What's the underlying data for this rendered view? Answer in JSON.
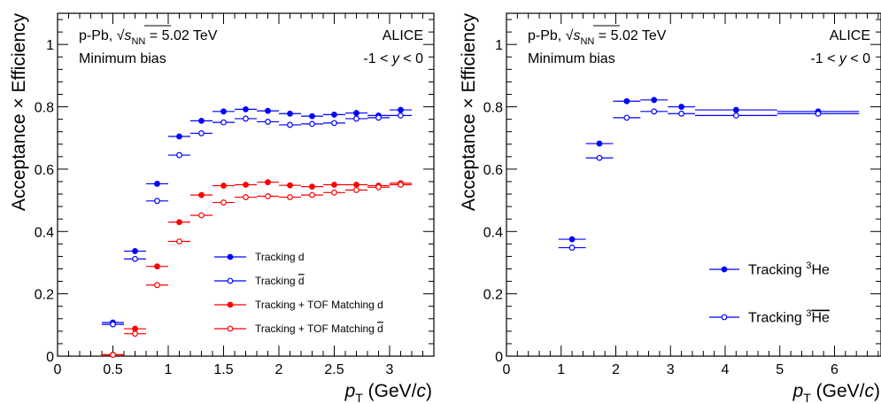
{
  "chart_data": [
    {
      "type": "scatter",
      "xlabel": "p_T (GeV/c)",
      "ylabel": "Acceptance × Efficiency",
      "xlim": [
        0,
        3.4
      ],
      "ylim": [
        0,
        1.1
      ],
      "xticks": [
        "0",
        "0.5",
        "1",
        "1.5",
        "2",
        "2.5",
        "3"
      ],
      "yticks": [
        "0",
        "0.2",
        "0.4",
        "0.6",
        "0.8",
        "1"
      ],
      "annotations": {
        "system": "p-Pb, √s_NN = 5.02 TeV",
        "trigger": "Minimum bias",
        "experiment": "ALICE",
        "rapidity": "-1 < y < 0"
      },
      "legend_placement": "bottom-right",
      "series": [
        {
          "name": "Tracking d",
          "color": "#0000ff",
          "filled": true,
          "points": [
            {
              "x": 0.5,
              "xerr": 0.1,
              "y": 0.108
            },
            {
              "x": 0.7,
              "xerr": 0.1,
              "y": 0.337
            },
            {
              "x": 0.9,
              "xerr": 0.1,
              "y": 0.553
            },
            {
              "x": 1.1,
              "xerr": 0.1,
              "y": 0.705
            },
            {
              "x": 1.3,
              "xerr": 0.1,
              "y": 0.755
            },
            {
              "x": 1.5,
              "xerr": 0.1,
              "y": 0.785
            },
            {
              "x": 1.7,
              "xerr": 0.1,
              "y": 0.792
            },
            {
              "x": 1.9,
              "xerr": 0.1,
              "y": 0.787
            },
            {
              "x": 2.1,
              "xerr": 0.1,
              "y": 0.778
            },
            {
              "x": 2.3,
              "xerr": 0.1,
              "y": 0.77
            },
            {
              "x": 2.5,
              "xerr": 0.1,
              "y": 0.775
            },
            {
              "x": 2.7,
              "xerr": 0.1,
              "y": 0.78
            },
            {
              "x": 2.9,
              "xerr": 0.1,
              "y": 0.772
            },
            {
              "x": 3.1,
              "xerr": 0.1,
              "y": 0.79
            }
          ]
        },
        {
          "name": "Tracking d̄",
          "color": "#0000ff",
          "filled": false,
          "points": [
            {
              "x": 0.5,
              "xerr": 0.1,
              "y": 0.102
            },
            {
              "x": 0.7,
              "xerr": 0.1,
              "y": 0.312
            },
            {
              "x": 0.9,
              "xerr": 0.1,
              "y": 0.498
            },
            {
              "x": 1.1,
              "xerr": 0.1,
              "y": 0.645
            },
            {
              "x": 1.3,
              "xerr": 0.1,
              "y": 0.715
            },
            {
              "x": 1.5,
              "xerr": 0.1,
              "y": 0.75
            },
            {
              "x": 1.7,
              "xerr": 0.1,
              "y": 0.762
            },
            {
              "x": 1.9,
              "xerr": 0.1,
              "y": 0.752
            },
            {
              "x": 2.1,
              "xerr": 0.1,
              "y": 0.742
            },
            {
              "x": 2.3,
              "xerr": 0.1,
              "y": 0.745
            },
            {
              "x": 2.5,
              "xerr": 0.1,
              "y": 0.748
            },
            {
              "x": 2.7,
              "xerr": 0.1,
              "y": 0.762
            },
            {
              "x": 2.9,
              "xerr": 0.1,
              "y": 0.765
            },
            {
              "x": 3.1,
              "xerr": 0.1,
              "y": 0.772
            }
          ]
        },
        {
          "name": "Tracking + TOF Matching d",
          "color": "#ff0000",
          "filled": true,
          "points": [
            {
              "x": 0.5,
              "xerr": 0.1,
              "y": 0.005
            },
            {
              "x": 0.7,
              "xerr": 0.1,
              "y": 0.088
            },
            {
              "x": 0.9,
              "xerr": 0.1,
              "y": 0.288
            },
            {
              "x": 1.1,
              "xerr": 0.1,
              "y": 0.43
            },
            {
              "x": 1.3,
              "xerr": 0.1,
              "y": 0.517
            },
            {
              "x": 1.5,
              "xerr": 0.1,
              "y": 0.547
            },
            {
              "x": 1.7,
              "xerr": 0.1,
              "y": 0.55
            },
            {
              "x": 1.9,
              "xerr": 0.1,
              "y": 0.558
            },
            {
              "x": 2.1,
              "xerr": 0.1,
              "y": 0.548
            },
            {
              "x": 2.3,
              "xerr": 0.1,
              "y": 0.544
            },
            {
              "x": 2.5,
              "xerr": 0.1,
              "y": 0.55
            },
            {
              "x": 2.7,
              "xerr": 0.1,
              "y": 0.55
            },
            {
              "x": 2.9,
              "xerr": 0.1,
              "y": 0.547
            },
            {
              "x": 3.1,
              "xerr": 0.1,
              "y": 0.555
            }
          ]
        },
        {
          "name": "Tracking + TOF Matching d̄",
          "color": "#ff0000",
          "filled": false,
          "points": [
            {
              "x": 0.5,
              "xerr": 0.1,
              "y": 0.004
            },
            {
              "x": 0.7,
              "xerr": 0.1,
              "y": 0.072
            },
            {
              "x": 0.9,
              "xerr": 0.1,
              "y": 0.228
            },
            {
              "x": 1.1,
              "xerr": 0.1,
              "y": 0.368
            },
            {
              "x": 1.3,
              "xerr": 0.1,
              "y": 0.452
            },
            {
              "x": 1.5,
              "xerr": 0.1,
              "y": 0.493
            },
            {
              "x": 1.7,
              "xerr": 0.1,
              "y": 0.51
            },
            {
              "x": 1.9,
              "xerr": 0.1,
              "y": 0.513
            },
            {
              "x": 2.1,
              "xerr": 0.1,
              "y": 0.51
            },
            {
              "x": 2.3,
              "xerr": 0.1,
              "y": 0.517
            },
            {
              "x": 2.5,
              "xerr": 0.1,
              "y": 0.525
            },
            {
              "x": 2.7,
              "xerr": 0.1,
              "y": 0.533
            },
            {
              "x": 2.9,
              "xerr": 0.1,
              "y": 0.542
            },
            {
              "x": 3.1,
              "xerr": 0.1,
              "y": 0.55
            }
          ]
        }
      ]
    },
    {
      "type": "scatter",
      "xlabel": "p_T (GeV/c)",
      "ylabel": "Acceptance × Efficiency",
      "xlim": [
        0,
        6.85
      ],
      "ylim": [
        0,
        1.1
      ],
      "xticks": [
        "0",
        "1",
        "2",
        "3",
        "4",
        "5",
        "6"
      ],
      "yticks": [
        "0",
        "0.2",
        "0.4",
        "0.6",
        "0.8",
        "1"
      ],
      "annotations": {
        "system": "p-Pb, √s_NN = 5.02 TeV",
        "trigger": "Minimum bias",
        "experiment": "ALICE",
        "rapidity": "-1 < y < 0"
      },
      "legend_placement": "bottom-right",
      "series": [
        {
          "name": "Tracking ³He",
          "color": "#0000ff",
          "filled": true,
          "points": [
            {
              "x": 1.2,
              "xerr": 0.25,
              "y": 0.375
            },
            {
              "x": 1.7,
              "xerr": 0.25,
              "y": 0.682
            },
            {
              "x": 2.2,
              "xerr": 0.25,
              "y": 0.818
            },
            {
              "x": 2.7,
              "xerr": 0.25,
              "y": 0.822
            },
            {
              "x": 3.2,
              "xerr": 0.25,
              "y": 0.8
            },
            {
              "x": 4.2,
              "xerr": 0.75,
              "y": 0.79
            },
            {
              "x": 5.7,
              "xerr": 0.75,
              "y": 0.785
            }
          ]
        },
        {
          "name": "Tracking ³He̅",
          "color": "#0000ff",
          "filled": false,
          "points": [
            {
              "x": 1.2,
              "xerr": 0.25,
              "y": 0.348
            },
            {
              "x": 1.7,
              "xerr": 0.25,
              "y": 0.636
            },
            {
              "x": 2.2,
              "xerr": 0.25,
              "y": 0.765
            },
            {
              "x": 2.7,
              "xerr": 0.25,
              "y": 0.785
            },
            {
              "x": 3.2,
              "xerr": 0.25,
              "y": 0.778
            },
            {
              "x": 4.2,
              "xerr": 0.75,
              "y": 0.772
            },
            {
              "x": 5.7,
              "xerr": 0.75,
              "y": 0.778
            }
          ]
        }
      ]
    }
  ]
}
